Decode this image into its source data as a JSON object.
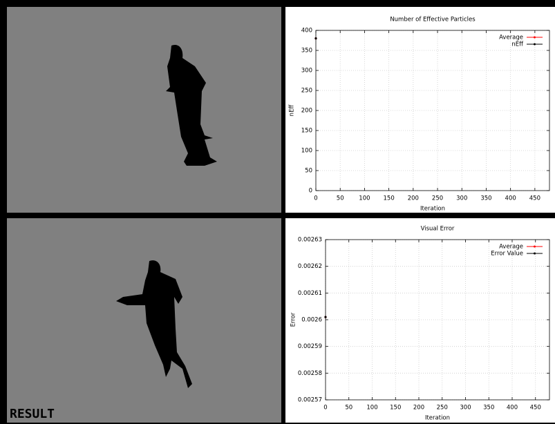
{
  "panels": {
    "result_label": "RESULT"
  },
  "chart_data": [
    {
      "type": "line",
      "title": "Number of Effective Particles",
      "xlabel": "Iteration",
      "ylabel": "nEff",
      "x": [
        0
      ],
      "series": [
        {
          "name": "Average",
          "color": "#ff0000",
          "values": [
            380
          ]
        },
        {
          "name": "nEff",
          "color": "#000000",
          "values": [
            380
          ]
        }
      ],
      "xlim": [
        0,
        480
      ],
      "xticks": [
        0,
        50,
        100,
        150,
        200,
        250,
        300,
        350,
        400,
        450
      ],
      "ylim": [
        0,
        400
      ],
      "yticks": [
        0,
        50,
        100,
        150,
        200,
        250,
        300,
        350,
        400
      ],
      "grid": true,
      "legend": "top-right"
    },
    {
      "type": "line",
      "title": "Visual Error",
      "xlabel": "Iteration",
      "ylabel": "Error",
      "x": [
        0
      ],
      "series": [
        {
          "name": "Average",
          "color": "#ff0000",
          "values": [
            0.002601
          ]
        },
        {
          "name": "Error Value",
          "color": "#000000",
          "values": [
            0.002601
          ]
        }
      ],
      "xlim": [
        0,
        480
      ],
      "xticks": [
        0,
        50,
        100,
        150,
        200,
        250,
        300,
        350,
        400,
        450
      ],
      "ylim": [
        0.00257,
        0.00263
      ],
      "yticks": [
        0.00257,
        0.00258,
        0.00259,
        0.0026,
        0.00261,
        0.00262,
        0.00263
      ],
      "grid": true,
      "legend": "top-right"
    }
  ]
}
